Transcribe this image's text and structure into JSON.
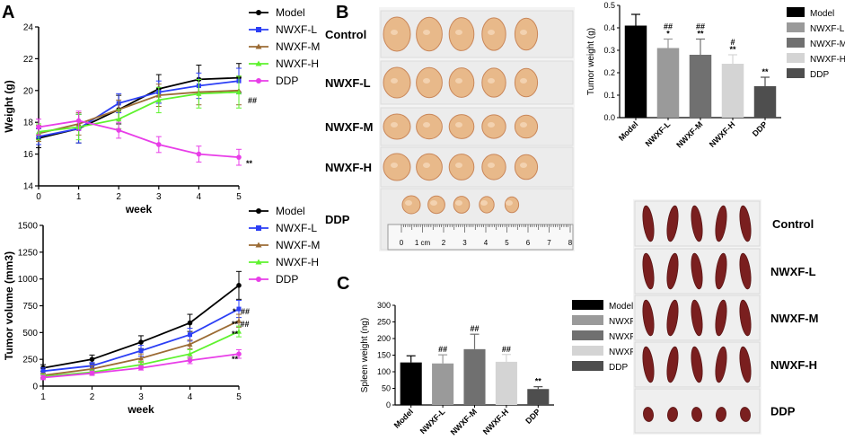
{
  "panels": {
    "a": "A",
    "b": "B",
    "c": "C"
  },
  "legend_labels": [
    "Model",
    "NWXF-L",
    "NWXF-M",
    "NWXF-H",
    "DDP"
  ],
  "group_colors": {
    "Model": "#000000",
    "NWXF-L": "#2c3ff5",
    "NWXF-M": "#9b6b34",
    "NWXF-H": "#5ef22e",
    "DDP": "#e83ee8"
  },
  "bar_colors": {
    "Model": "#000000",
    "NWXF-L": "#9a9a9a",
    "NWXF-M": "#707070",
    "NWXF-H": "#d4d4d4",
    "DDP": "#4e4e4e"
  },
  "tumor_photo": {
    "rows": [
      "Control",
      "NWXF-L",
      "NWXF-M",
      "NWXF-H",
      "DDP"
    ],
    "ruler_numbers": [
      "0",
      "1 cm",
      "2",
      "3",
      "4",
      "5",
      "6",
      "7",
      "8"
    ]
  },
  "spleen_photo": {
    "rows": [
      "Control",
      "NWXF-L",
      "NWXF-M",
      "NWXF-H",
      "DDP"
    ]
  },
  "chart_data": [
    {
      "id": "weight",
      "type": "line",
      "title": "",
      "xlabel": "week",
      "ylabel": "Weight (g)",
      "x": [
        0,
        1,
        2,
        3,
        4,
        5
      ],
      "xlim": [
        0,
        5
      ],
      "ylim": [
        14,
        24
      ],
      "yticks": [
        14,
        16,
        18,
        20,
        22,
        24
      ],
      "series": [
        {
          "name": "Model",
          "values": [
            17.0,
            17.6,
            18.8,
            20.1,
            20.7,
            20.8
          ],
          "errors": [
            0.6,
            0.9,
            0.9,
            0.9,
            0.9,
            0.9
          ],
          "annotation": ""
        },
        {
          "name": "NWXF-L",
          "values": [
            17.1,
            17.6,
            19.2,
            19.9,
            20.3,
            20.6
          ],
          "errors": [
            0.5,
            0.9,
            0.6,
            0.7,
            0.8,
            0.8
          ],
          "annotation": "##"
        },
        {
          "name": "NWXF-M",
          "values": [
            17.3,
            17.9,
            18.8,
            19.7,
            19.9,
            20.0
          ],
          "errors": [
            0.5,
            0.7,
            0.6,
            0.7,
            0.8,
            0.9
          ],
          "annotation": ""
        },
        {
          "name": "NWXF-H",
          "values": [
            17.4,
            17.7,
            18.2,
            19.4,
            19.8,
            19.9
          ],
          "errors": [
            0.5,
            0.8,
            0.6,
            0.8,
            0.9,
            1.0
          ],
          "annotation": ""
        },
        {
          "name": "DDP",
          "values": [
            17.7,
            18.1,
            17.5,
            16.6,
            16.0,
            15.8
          ],
          "errors": [
            0.5,
            0.6,
            0.5,
            0.5,
            0.5,
            0.5
          ],
          "annotation": "**"
        }
      ]
    },
    {
      "id": "tumor_volume",
      "type": "line",
      "title": "",
      "xlabel": "week",
      "ylabel": "Tumor volume (mm3)",
      "x": [
        1,
        2,
        3,
        4,
        5
      ],
      "xlim": [
        1,
        5
      ],
      "ylim": [
        0,
        1500
      ],
      "yticks": [
        0,
        250,
        500,
        750,
        1000,
        1250,
        1500
      ],
      "series": [
        {
          "name": "Model",
          "values": [
            170,
            250,
            410,
            590,
            940
          ],
          "errors": [
            30,
            40,
            60,
            80,
            130
          ],
          "annotation": "*"
        },
        {
          "name": "NWXF-L",
          "values": [
            140,
            190,
            330,
            480,
            720
          ],
          "errors": [
            30,
            30,
            50,
            60,
            80
          ],
          "annotation": "##"
        },
        {
          "name": "NWXF-M",
          "values": [
            100,
            160,
            260,
            390,
            610
          ],
          "errors": [
            20,
            30,
            40,
            40,
            60
          ],
          "annotation": "** ##"
        },
        {
          "name": "NWXF-H",
          "values": [
            90,
            130,
            200,
            300,
            510
          ],
          "errors": [
            20,
            20,
            30,
            40,
            50
          ],
          "annotation": "**"
        },
        {
          "name": "DDP",
          "values": [
            80,
            120,
            170,
            240,
            300
          ],
          "errors": [
            20,
            20,
            20,
            30,
            40
          ],
          "annotation": "**"
        }
      ]
    },
    {
      "id": "tumor_weight",
      "type": "bar",
      "title": "",
      "xlabel": "",
      "ylabel": "Tumor weight (g)",
      "categories": [
        "Model",
        "NWXF-L",
        "NWXF-M",
        "NWXF-H",
        "DDP"
      ],
      "values": [
        0.41,
        0.31,
        0.28,
        0.24,
        0.14
      ],
      "errors": [
        0.05,
        0.04,
        0.07,
        0.04,
        0.04
      ],
      "annotations": [
        [
          "",
          ""
        ],
        [
          "##",
          "*"
        ],
        [
          "##",
          "**"
        ],
        [
          "#",
          "**"
        ],
        [
          "",
          "**"
        ]
      ],
      "ylim": [
        0.0,
        0.5
      ],
      "yticks": [
        0.0,
        0.1,
        0.2,
        0.3,
        0.4,
        0.5
      ]
    },
    {
      "id": "spleen_weight",
      "type": "bar",
      "title": "",
      "xlabel": "",
      "ylabel": "Spleen weight (ng)",
      "categories": [
        "Model",
        "NWXF-L",
        "NWXF-M",
        "NWXF-H",
        "DDP"
      ],
      "values": [
        128,
        125,
        168,
        130,
        48
      ],
      "errors": [
        20,
        26,
        45,
        22,
        7
      ],
      "annotations": [
        "",
        "##",
        "##",
        "##",
        "**"
      ],
      "ylim": [
        0,
        300
      ],
      "yticks": [
        0,
        50,
        100,
        150,
        200,
        250,
        300
      ]
    }
  ]
}
